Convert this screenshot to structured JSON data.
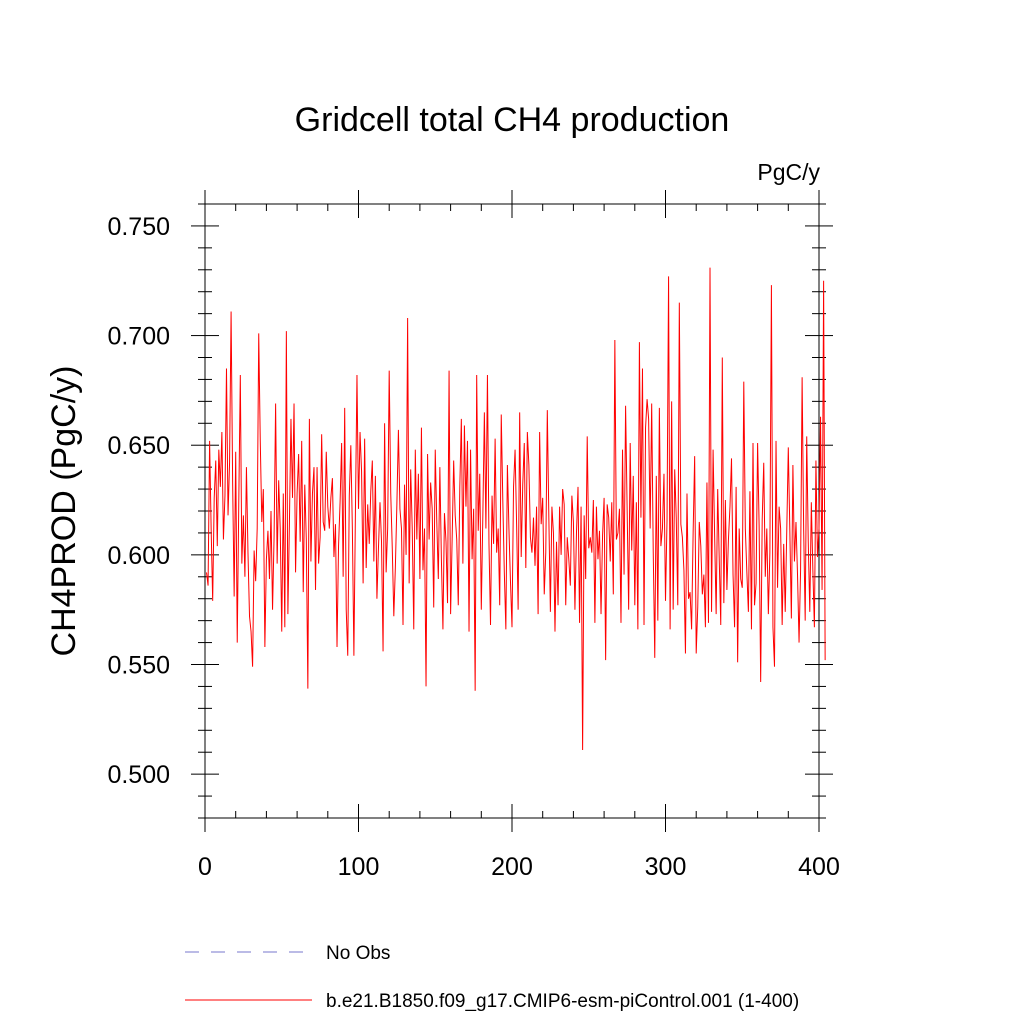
{
  "chart_data": {
    "type": "line",
    "title": "Gridcell total CH4 production",
    "units_label": "PgC/y",
    "ylabel": "CH4PROD  (PgC/y)",
    "xlabel": "",
    "xlim": [
      0,
      400
    ],
    "ylim": [
      0.48,
      0.76
    ],
    "xticks": [
      0,
      100,
      200,
      300,
      400
    ],
    "xtick_labels": [
      "0",
      "100",
      "200",
      "300",
      "400"
    ],
    "yticks": [
      0.5,
      0.55,
      0.6,
      0.65,
      0.7,
      0.75
    ],
    "ytick_labels": [
      "0.500",
      "0.550",
      "0.600",
      "0.650",
      "0.700",
      "0.750"
    ],
    "grid": false,
    "legend_position": "bottom",
    "series": [
      {
        "name": "No Obs",
        "color": "#7777cc",
        "style": "dashed",
        "x": [],
        "y": []
      },
      {
        "name": "b.e21.B1850.f09_g17.CMIP6-esm-piControl.001 (1-400)",
        "color": "#ff0000",
        "style": "solid",
        "x_start": 1,
        "x_step": 1,
        "y": [
          0.592,
          0.586,
          0.652,
          0.612,
          0.579,
          0.626,
          0.643,
          0.604,
          0.648,
          0.631,
          0.656,
          0.607,
          0.627,
          0.685,
          0.618,
          0.642,
          0.711,
          0.633,
          0.581,
          0.647,
          0.56,
          0.624,
          0.682,
          0.596,
          0.618,
          0.59,
          0.64,
          0.601,
          0.572,
          0.565,
          0.549,
          0.602,
          0.588,
          0.612,
          0.701,
          0.652,
          0.615,
          0.63,
          0.558,
          0.598,
          0.611,
          0.589,
          0.62,
          0.575,
          0.608,
          0.669,
          0.596,
          0.634,
          0.612,
          0.565,
          0.628,
          0.567,
          0.702,
          0.573,
          0.615,
          0.662,
          0.626,
          0.669,
          0.592,
          0.628,
          0.646,
          0.606,
          0.652,
          0.583,
          0.632,
          0.607,
          0.539,
          0.662,
          0.597,
          0.628,
          0.64,
          0.584,
          0.64,
          0.596,
          0.608,
          0.655,
          0.615,
          0.611,
          0.647,
          0.622,
          0.612,
          0.626,
          0.635,
          0.599,
          0.614,
          0.558,
          0.604,
          0.624,
          0.651,
          0.59,
          0.667,
          0.575,
          0.554,
          0.627,
          0.65,
          0.612,
          0.554,
          0.62,
          0.682,
          0.621,
          0.656,
          0.638,
          0.587,
          0.653,
          0.594,
          0.623,
          0.605,
          0.629,
          0.643,
          0.597,
          0.636,
          0.58,
          0.603,
          0.624,
          0.606,
          0.556,
          0.66,
          0.592,
          0.612,
          0.684,
          0.628,
          0.603,
          0.572,
          0.594,
          0.623,
          0.657,
          0.621,
          0.612,
          0.568,
          0.632,
          0.6,
          0.708,
          0.587,
          0.639,
          0.612,
          0.566,
          0.648,
          0.607,
          0.637,
          0.589,
          0.658,
          0.593,
          0.612,
          0.54,
          0.646,
          0.607,
          0.633,
          0.621,
          0.576,
          0.648,
          0.615,
          0.589,
          0.64,
          0.598,
          0.566,
          0.619,
          0.606,
          0.578,
          0.684,
          0.573,
          0.607,
          0.643,
          0.618,
          0.607,
          0.577,
          0.631,
          0.662,
          0.596,
          0.659,
          0.622,
          0.652,
          0.565,
          0.648,
          0.598,
          0.621,
          0.538,
          0.682,
          0.611,
          0.637,
          0.575,
          0.618,
          0.665,
          0.612,
          0.682,
          0.605,
          0.568,
          0.627,
          0.605,
          0.653,
          0.601,
          0.612,
          0.577,
          0.664,
          0.625,
          0.592,
          0.566,
          0.641,
          0.612,
          0.588,
          0.567,
          0.631,
          0.648,
          0.614,
          0.575,
          0.665,
          0.599,
          0.632,
          0.651,
          0.594,
          0.656,
          0.641,
          0.608,
          0.601,
          0.617,
          0.595,
          0.622,
          0.573,
          0.656,
          0.614,
          0.626,
          0.582,
          0.601,
          0.666,
          0.617,
          0.574,
          0.622,
          0.61,
          0.565,
          0.606,
          0.577,
          0.622,
          0.6,
          0.63,
          0.623,
          0.577,
          0.608,
          0.598,
          0.586,
          0.627,
          0.615,
          0.575,
          0.61,
          0.631,
          0.569,
          0.622,
          0.511,
          0.618,
          0.589,
          0.654,
          0.603,
          0.608,
          0.601,
          0.625,
          0.569,
          0.622,
          0.598,
          0.611,
          0.573,
          0.609,
          0.626,
          0.552,
          0.623,
          0.617,
          0.597,
          0.624,
          0.582,
          0.698,
          0.607,
          0.61,
          0.621,
          0.569,
          0.648,
          0.591,
          0.668,
          0.621,
          0.575,
          0.651,
          0.602,
          0.636,
          0.577,
          0.624,
          0.566,
          0.697,
          0.617,
          0.685,
          0.568,
          0.658,
          0.671,
          0.662,
          0.612,
          0.669,
          0.602,
          0.553,
          0.636,
          0.57,
          0.667,
          0.604,
          0.612,
          0.637,
          0.579,
          0.616,
          0.727,
          0.566,
          0.67,
          0.575,
          0.639,
          0.617,
          0.577,
          0.715,
          0.614,
          0.608,
          0.593,
          0.555,
          0.628,
          0.58,
          0.583,
          0.566,
          0.61,
          0.645,
          0.555,
          0.576,
          0.615,
          0.604,
          0.582,
          0.591,
          0.567,
          0.633,
          0.569,
          0.731,
          0.574,
          0.648,
          0.609,
          0.573,
          0.63,
          0.598,
          0.568,
          0.69,
          0.578,
          0.625,
          0.584,
          0.607,
          0.622,
          0.644,
          0.591,
          0.567,
          0.631,
          0.551,
          0.612,
          0.589,
          0.585,
          0.679,
          0.612,
          0.592,
          0.574,
          0.629,
          0.566,
          0.651,
          0.577,
          0.587,
          0.651,
          0.613,
          0.542,
          0.616,
          0.642,
          0.59,
          0.612,
          0.573,
          0.601,
          0.723,
          0.567,
          0.549,
          0.652,
          0.585,
          0.622,
          0.612,
          0.568,
          0.605,
          0.574,
          0.611,
          0.649,
          0.611,
          0.571,
          0.641,
          0.597,
          0.615,
          0.591,
          0.56,
          0.593,
          0.681,
          0.612,
          0.57,
          0.654,
          0.606,
          0.574,
          0.624,
          0.593,
          0.567,
          0.643,
          0.599,
          0.612,
          0.663,
          0.584,
          0.725,
          0.552
        ]
      }
    ]
  }
}
